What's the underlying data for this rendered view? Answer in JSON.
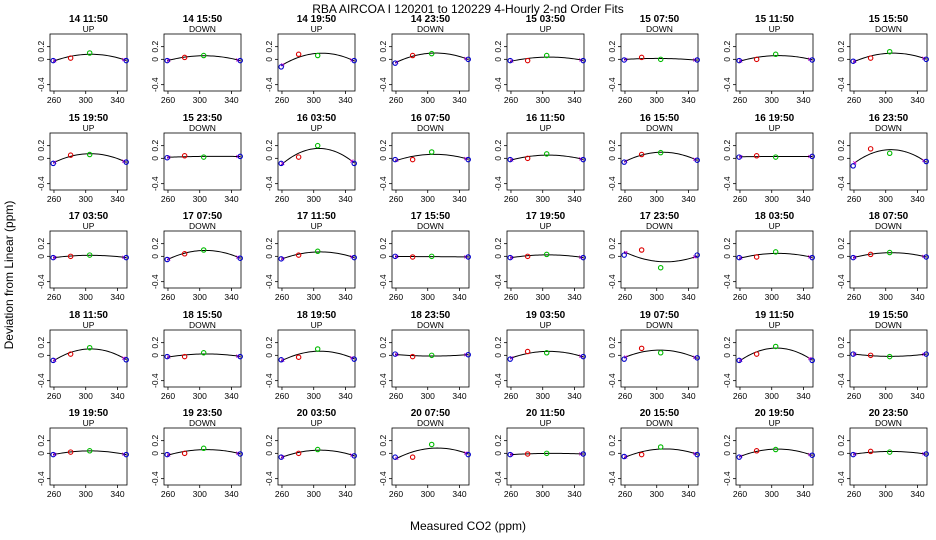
{
  "figure": {
    "title": "RBA   AIRCOA I   120201 to 120229   4-Hourly 2-nd Order Fits",
    "xlabel": "Measured CO2 (ppm)",
    "ylabel": "Deviation from Linear (ppm)"
  },
  "chart_data": {
    "type": "scatter",
    "layout": {
      "rows": 5,
      "cols": 8
    },
    "xlim": [
      255,
      352
    ],
    "ylim": [
      -0.5,
      0.4
    ],
    "xticks": [
      260,
      300,
      340
    ],
    "yticks": [
      -0.4,
      0.0,
      0.2
    ],
    "ytick_labels": [
      "-0.4",
      "0",
      "0.2"
    ],
    "point_x": [
      259,
      281,
      305,
      351
    ],
    "colors": {
      "blue": "#0000cc",
      "red": "#dd0000",
      "green": "#00bb00",
      "magenta": "#cc00cc",
      "curve": "#000000"
    },
    "panels": [
      {
        "title": "14 11:50",
        "dir": "UP",
        "y": [
          -0.02,
          0.02,
          0.1,
          -0.02
        ]
      },
      {
        "title": "14 15:50",
        "dir": "DOWN",
        "y": [
          -0.02,
          0.03,
          0.06,
          -0.02
        ]
      },
      {
        "title": "14 19:50",
        "dir": "UP",
        "y": [
          -0.12,
          0.08,
          0.06,
          -0.02
        ]
      },
      {
        "title": "14 23:50",
        "dir": "DOWN",
        "y": [
          -0.06,
          0.06,
          0.09,
          0.0
        ]
      },
      {
        "title": "15 03:50",
        "dir": "UP",
        "y": [
          -0.02,
          -0.02,
          0.06,
          -0.02
        ]
      },
      {
        "title": "15 07:50",
        "dir": "DOWN",
        "y": [
          -0.01,
          0.03,
          0.0,
          -0.01
        ]
      },
      {
        "title": "15 11:50",
        "dir": "UP",
        "y": [
          -0.02,
          0.0,
          0.08,
          -0.01
        ]
      },
      {
        "title": "15 15:50",
        "dir": "DOWN",
        "y": [
          -0.03,
          0.02,
          0.12,
          0.0
        ]
      },
      {
        "title": "15 19:50",
        "dir": "UP",
        "y": [
          -0.08,
          0.05,
          0.06,
          -0.06
        ]
      },
      {
        "title": "15 23:50",
        "dir": "DOWN",
        "y": [
          0.01,
          0.04,
          0.02,
          0.03
        ]
      },
      {
        "title": "16 03:50",
        "dir": "UP",
        "y": [
          -0.08,
          0.02,
          0.2,
          -0.08
        ]
      },
      {
        "title": "16 07:50",
        "dir": "DOWN",
        "y": [
          -0.02,
          -0.02,
          0.1,
          -0.02
        ]
      },
      {
        "title": "16 11:50",
        "dir": "UP",
        "y": [
          -0.02,
          0.0,
          0.07,
          -0.02
        ]
      },
      {
        "title": "16 15:50",
        "dir": "DOWN",
        "y": [
          -0.06,
          0.06,
          0.09,
          -0.03
        ]
      },
      {
        "title": "16 19:50",
        "dir": "UP",
        "y": [
          0.02,
          0.04,
          0.02,
          0.03
        ]
      },
      {
        "title": "16 23:50",
        "dir": "DOWN",
        "y": [
          -0.12,
          0.15,
          0.08,
          -0.05
        ]
      },
      {
        "title": "17 03:50",
        "dir": "UP",
        "y": [
          -0.02,
          0.0,
          0.02,
          -0.02
        ]
      },
      {
        "title": "17 07:50",
        "dir": "DOWN",
        "y": [
          -0.05,
          0.04,
          0.1,
          -0.03
        ]
      },
      {
        "title": "17 11:50",
        "dir": "UP",
        "y": [
          -0.04,
          0.02,
          0.08,
          -0.02
        ]
      },
      {
        "title": "17 15:50",
        "dir": "DOWN",
        "y": [
          0.0,
          -0.01,
          0.0,
          -0.01
        ]
      },
      {
        "title": "17 19:50",
        "dir": "UP",
        "y": [
          -0.02,
          0.0,
          0.03,
          -0.02
        ]
      },
      {
        "title": "17 23:50",
        "dir": "DOWN",
        "y": [
          0.02,
          0.1,
          -0.18,
          0.02
        ]
      },
      {
        "title": "18 03:50",
        "dir": "UP",
        "y": [
          -0.02,
          -0.01,
          0.07,
          -0.02
        ]
      },
      {
        "title": "18 07:50",
        "dir": "DOWN",
        "y": [
          -0.02,
          0.03,
          0.06,
          -0.01
        ]
      },
      {
        "title": "18 11:50",
        "dir": "UP",
        "y": [
          -0.08,
          0.02,
          0.12,
          -0.07
        ]
      },
      {
        "title": "18 15:50",
        "dir": "DOWN",
        "y": [
          -0.02,
          -0.02,
          0.04,
          -0.02
        ]
      },
      {
        "title": "18 19:50",
        "dir": "UP",
        "y": [
          -0.07,
          -0.03,
          0.1,
          -0.06
        ]
      },
      {
        "title": "18 23:50",
        "dir": "DOWN",
        "y": [
          0.02,
          -0.02,
          0.0,
          0.01
        ]
      },
      {
        "title": "19 03:50",
        "dir": "UP",
        "y": [
          -0.06,
          0.06,
          0.04,
          -0.02
        ]
      },
      {
        "title": "19 07:50",
        "dir": "DOWN",
        "y": [
          -0.06,
          0.11,
          0.04,
          -0.04
        ]
      },
      {
        "title": "19 11:50",
        "dir": "UP",
        "y": [
          -0.08,
          0.02,
          0.14,
          -0.08
        ]
      },
      {
        "title": "19 15:50",
        "dir": "DOWN",
        "y": [
          0.02,
          0.0,
          -0.02,
          0.02
        ]
      },
      {
        "title": "19 19:50",
        "dir": "UP",
        "y": [
          -0.02,
          0.02,
          0.04,
          -0.02
        ]
      },
      {
        "title": "19 23:50",
        "dir": "DOWN",
        "y": [
          -0.02,
          0.0,
          0.08,
          -0.01
        ]
      },
      {
        "title": "20 03:50",
        "dir": "UP",
        "y": [
          -0.06,
          0.0,
          0.06,
          -0.04
        ]
      },
      {
        "title": "20 07:50",
        "dir": "DOWN",
        "y": [
          -0.06,
          -0.06,
          0.14,
          -0.02
        ]
      },
      {
        "title": "20 11:50",
        "dir": "UP",
        "y": [
          -0.02,
          -0.01,
          0.0,
          -0.01
        ]
      },
      {
        "title": "20 15:50",
        "dir": "DOWN",
        "y": [
          -0.05,
          -0.02,
          0.1,
          -0.02
        ]
      },
      {
        "title": "20 19:50",
        "dir": "UP",
        "y": [
          -0.06,
          0.04,
          0.06,
          -0.03
        ]
      },
      {
        "title": "20 23:50",
        "dir": "DOWN",
        "y": [
          -0.02,
          0.03,
          0.02,
          -0.01
        ]
      }
    ]
  }
}
